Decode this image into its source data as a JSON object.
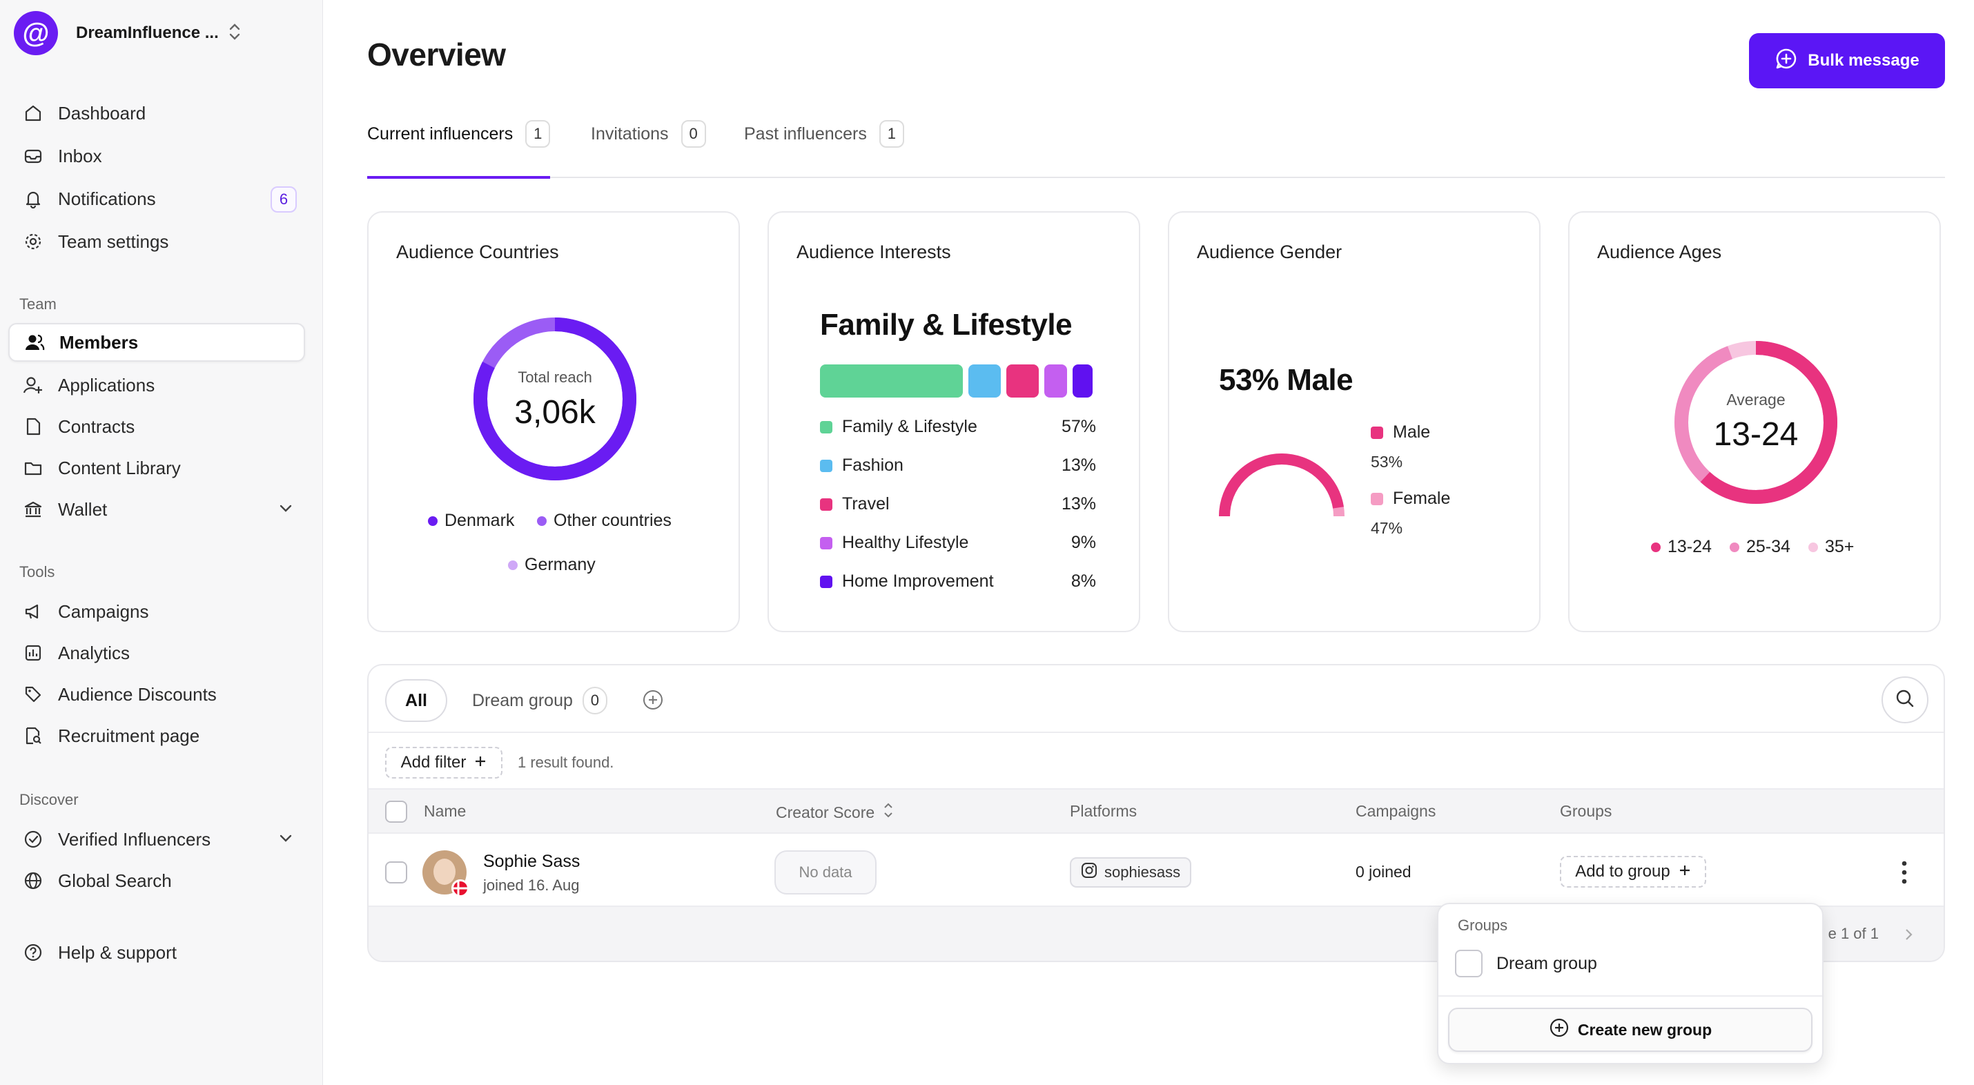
{
  "sidebar": {
    "workspace": "DreamInfluence ...",
    "main_items": [
      {
        "label": "Dashboard",
        "icon": "home-icon"
      },
      {
        "label": "Inbox",
        "icon": "inbox-icon"
      },
      {
        "label": "Notifications",
        "icon": "bell-icon",
        "badge": "6"
      },
      {
        "label": "Team settings",
        "icon": "gear-icon"
      }
    ],
    "team_label": "Team",
    "team_items": [
      {
        "label": "Members",
        "icon": "users-icon",
        "active": true
      },
      {
        "label": "Applications",
        "icon": "user-plus-icon"
      },
      {
        "label": "Contracts",
        "icon": "document-icon"
      },
      {
        "label": "Content Library",
        "icon": "folder-icon"
      },
      {
        "label": "Wallet",
        "icon": "bank-icon"
      }
    ],
    "tools_label": "Tools",
    "tools_items": [
      {
        "label": "Campaigns",
        "icon": "megaphone-icon"
      },
      {
        "label": "Analytics",
        "icon": "chart-icon"
      },
      {
        "label": "Audience Discounts",
        "icon": "tag-icon"
      },
      {
        "label": "Recruitment page",
        "icon": "page-search-icon"
      }
    ],
    "discover_label": "Discover",
    "discover_items": [
      {
        "label": "Verified Influencers",
        "icon": "verified-icon"
      },
      {
        "label": "Global Search",
        "icon": "globe-icon"
      }
    ],
    "help": {
      "label": "Help & support",
      "icon": "help-icon"
    }
  },
  "header": {
    "title": "Overview",
    "bulk_message": "Bulk message"
  },
  "tabs": [
    {
      "label": "Current influencers",
      "count": "1"
    },
    {
      "label": "Invitations",
      "count": "0"
    },
    {
      "label": "Past influencers",
      "count": "1"
    }
  ],
  "cards": {
    "countries": {
      "title": "Audience Countries",
      "center_label": "Total reach",
      "center_value": "3,06k",
      "legend": [
        "Denmark",
        "Other countries",
        "Germany"
      ],
      "colors": [
        "#6a1cf2",
        "#9b5cf5",
        "#cfa8f7"
      ]
    },
    "interests": {
      "title": "Audience Interests",
      "top": "Family & Lifestyle",
      "items": [
        {
          "label": "Family & Lifestyle",
          "pct": "57%",
          "value": 57,
          "color": "#5fd396"
        },
        {
          "label": "Fashion",
          "pct": "13%",
          "value": 13,
          "color": "#5bbcf0"
        },
        {
          "label": "Travel",
          "pct": "13%",
          "value": 13,
          "color": "#e8337f"
        },
        {
          "label": "Healthy Lifestyle",
          "pct": "9%",
          "value": 9,
          "color": "#c45ff0"
        },
        {
          "label": "Home Improvement",
          "pct": "8%",
          "value": 8,
          "color": "#6011f0"
        }
      ]
    },
    "gender": {
      "title": "Audience Gender",
      "headline": "53% Male",
      "male_label": "Male",
      "male_value": "53%",
      "female_label": "Female",
      "female_value": "47%",
      "colors": [
        "#e8337f",
        "#f59cc3"
      ]
    },
    "ages": {
      "title": "Audience Ages",
      "center_label": "Average",
      "center_value": "13-24",
      "legend": [
        "13-24",
        "25-34",
        "35+"
      ],
      "colors": [
        "#e8337f",
        "#f08ac0",
        "#f7c6e0"
      ]
    }
  },
  "groups_bar": {
    "all": "All",
    "dream_group": "Dream group",
    "dream_group_count": "0"
  },
  "filter": {
    "add_filter": "Add filter",
    "result": "1 result found."
  },
  "table": {
    "columns": [
      "Name",
      "Creator Score",
      "Platforms",
      "Campaigns",
      "Groups"
    ],
    "rows": [
      {
        "name": "Sophie Sass",
        "joined": "joined 16. Aug",
        "score": "No data",
        "platform": "sophiesass",
        "campaigns": "0 joined",
        "groups": "Add to group"
      }
    ],
    "pagination": "e 1 of 1"
  },
  "dropdown": {
    "title": "Groups",
    "option": "Dream group",
    "create": "Create new group"
  }
}
